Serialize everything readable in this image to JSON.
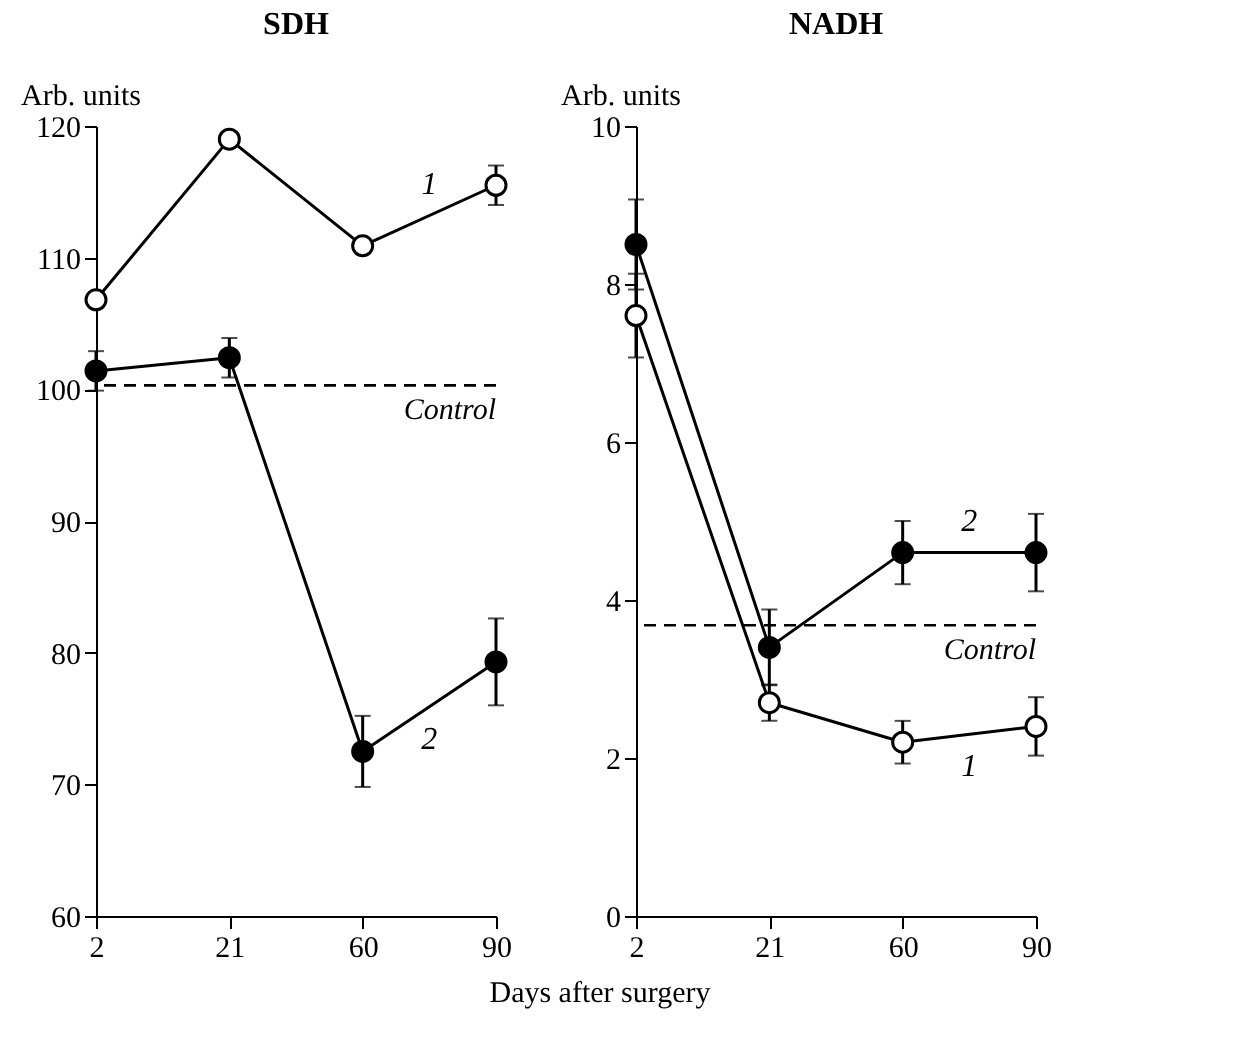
{
  "chart_data": [
    {
      "type": "line",
      "title": "SDH",
      "xlabel": "Days after surgery",
      "ylabel": "Arb. units",
      "categories": [
        "2",
        "21",
        "60",
        "90"
      ],
      "ylim": [
        60,
        120
      ],
      "yticks": [
        60,
        70,
        80,
        90,
        100,
        110,
        120
      ],
      "marker": "circle",
      "line_style": "solid",
      "series": [
        {
          "name": "1",
          "color": "#000000",
          "values": [
            106.8,
            119.0,
            110.9,
            115.5
          ],
          "errors": [
            null,
            null,
            null,
            1.5
          ]
        },
        {
          "name": "2",
          "color": "#000000",
          "values": [
            101.4,
            102.4,
            72.5,
            79.3
          ],
          "errors": [
            1.5,
            1.5,
            2.7,
            3.3
          ]
        }
      ],
      "ref_lines": [
        {
          "axis": "y",
          "value": 100.3,
          "label": "Control",
          "line_style": "dashed"
        }
      ]
    },
    {
      "type": "line",
      "title": "NADH",
      "ylabel": "Arb. units",
      "categories": [
        "2",
        "21",
        "60",
        "90"
      ],
      "ylim": [
        0,
        10
      ],
      "yticks": [
        0,
        2,
        4,
        6,
        8,
        10
      ],
      "marker": "circle",
      "line_style": "solid",
      "series": [
        {
          "name": "1",
          "color": "#000000",
          "values": [
            7.6,
            2.7,
            2.2,
            2.4
          ],
          "errors": [
            0.53,
            0.23,
            0.27,
            0.37
          ]
        },
        {
          "name": "2",
          "color": "#000000",
          "values": [
            8.5,
            3.4,
            4.6,
            4.6
          ],
          "errors": [
            0.57,
            0.48,
            0.4,
            0.49
          ]
        }
      ],
      "ref_lines": [
        {
          "axis": "y",
          "value": 3.68,
          "label": "Control",
          "line_style": "dashed"
        }
      ]
    }
  ]
}
